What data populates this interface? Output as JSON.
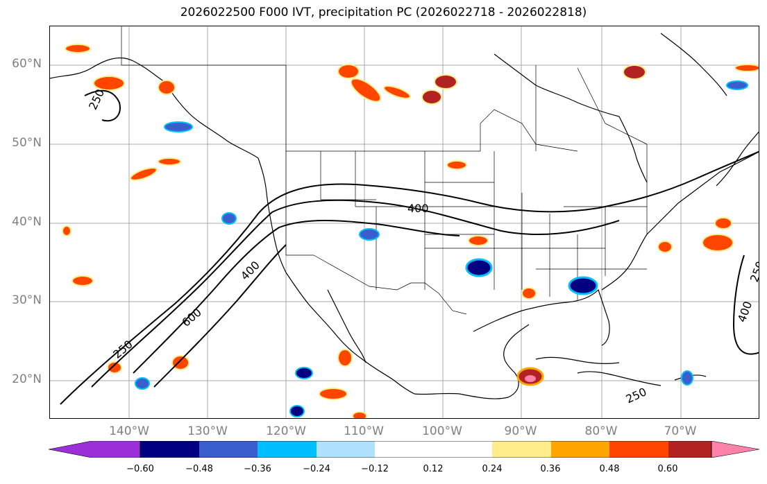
{
  "title": "2026022500 F000 IVT, precipitation PC (2026022718 - 2026022818)",
  "lat_labels": [
    "60°N",
    "50°N",
    "40°N",
    "30°N",
    "20°N"
  ],
  "lon_labels": [
    "140°W",
    "130°W",
    "120°W",
    "110°W",
    "100°W",
    "90°W",
    "80°W",
    "70°W"
  ],
  "ivt_contour_labels": [
    "250",
    "400",
    "600",
    "400",
    "250",
    "250",
    "400",
    "250"
  ],
  "colorbar": {
    "ticks": [
      "−0.60",
      "−0.48",
      "−0.36",
      "−0.24",
      "−0.12",
      "0.12",
      "0.24",
      "0.36",
      "0.48",
      "0.60"
    ],
    "colors": [
      "#9b30d9",
      "#000080",
      "#3a5fcd",
      "#00bfff",
      "#b0e2ff",
      "#ffffff",
      "#ffec8b",
      "#ffa500",
      "#ff4500",
      "#b22222",
      "#ff82ab"
    ]
  }
}
